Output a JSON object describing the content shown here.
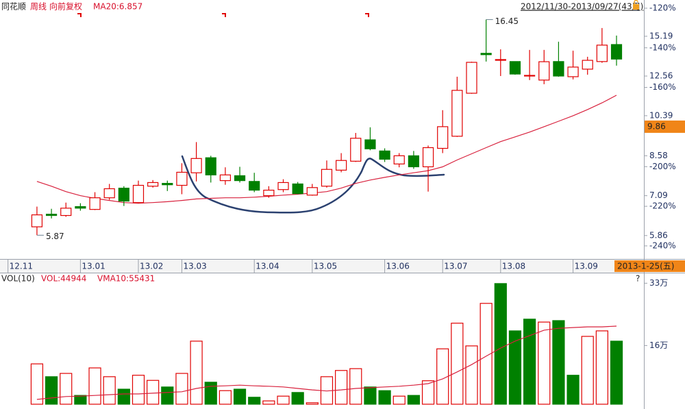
{
  "chart_data": [
    {
      "type": "candlestick",
      "app_name": "同花顺",
      "period": "周线",
      "adjustment": "向前复权",
      "indicator_label": "MA20:6.857",
      "date_range": "2012/11/30-2013/09/27(43周)",
      "cursor_date": "2013-1-25(五)",
      "last_price": 9.86,
      "max_label": 16.45,
      "min_label": 5.87,
      "up_color": "#e00000",
      "down_color": "#008000",
      "log_scale": true,
      "grid": false,
      "categories": [
        null,
        null,
        null,
        null,
        null,
        null,
        null,
        null,
        null,
        null,
        null,
        null,
        null,
        null,
        null,
        null,
        null,
        null,
        null,
        null,
        null,
        null,
        null,
        null,
        null,
        null,
        null,
        null,
        null,
        null,
        null,
        null,
        null,
        null,
        null,
        null,
        null,
        null,
        null,
        null,
        null
      ],
      "xlim": [
        -2.55,
        41.89
      ],
      "xticks": [
        {
          "value": -2,
          "label": "12.11"
        },
        {
          "value": 3,
          "label": "13.01"
        },
        {
          "value": 7,
          "label": "13.02"
        },
        {
          "value": 10,
          "label": "13.03"
        },
        {
          "value": 15,
          "label": "13.04"
        },
        {
          "value": 19,
          "label": "13.05"
        },
        {
          "value": 24,
          "label": "13.06"
        },
        {
          "value": 28,
          "label": "13.07"
        },
        {
          "value": 32,
          "label": "13.08"
        },
        {
          "value": 37,
          "label": "13.09"
        }
      ],
      "ylim": [
        5.24,
        17.77
      ],
      "yticks": [
        15.19,
        12.56,
        10.39,
        8.58,
        7.09,
        5.86
      ],
      "y2lim": [
        -246.6,
        -117.6
      ],
      "y2ticks": [
        {
          "value": -120,
          "label": "-120%"
        },
        {
          "value": -140,
          "label": "-140%"
        },
        {
          "value": -160,
          "label": "-160%"
        },
        {
          "value": -180,
          "label": "-180%"
        },
        {
          "value": -200,
          "label": "-200%"
        },
        {
          "value": -220,
          "label": "-220%"
        },
        {
          "value": -240,
          "label": "-240%"
        }
      ],
      "open": [
        6.11,
        6.49,
        6.45,
        6.73,
        6.64,
        7.02,
        7.35,
        6.86,
        7.42,
        7.52,
        7.45,
        7.91,
        8.5,
        7.62,
        7.8,
        7.59,
        7.09,
        7.3,
        7.5,
        7.11,
        7.42,
        8.01,
        8.36,
        9.26,
        8.78,
        8.25,
        8.58,
        8.14,
        8.89,
        9.42,
        11.57,
        14.0,
        13.54,
        13.46,
        12.56,
        12.32,
        13.46,
        12.52,
        12.98,
        13.46,
        14.6
      ],
      "high": [
        6.73,
        6.66,
        6.86,
        6.84,
        7.21,
        7.5,
        7.42,
        7.62,
        7.64,
        7.62,
        8.28,
        9.16,
        8.58,
        8.12,
        8.14,
        7.91,
        7.42,
        7.67,
        7.57,
        7.5,
        8.39,
        8.69,
        9.57,
        9.83,
        8.89,
        8.69,
        8.78,
        9.01,
        10.67,
        12.52,
        13.45,
        16.45,
        14.27,
        13.46,
        14.23,
        14.23,
        14.8,
        14.18,
        13.77,
        15.8,
        15.24
      ],
      "low": [
        5.87,
        6.36,
        6.41,
        6.6,
        6.62,
        6.95,
        6.75,
        6.84,
        7.37,
        7.25,
        7.14,
        7.59,
        7.55,
        7.47,
        7.55,
        7.21,
        7.02,
        7.21,
        7.14,
        7.09,
        7.37,
        7.93,
        8.33,
        8.81,
        8.33,
        8.12,
        8.06,
        7.23,
        8.69,
        9.39,
        11.54,
        13.46,
        12.56,
        12.64,
        12.32,
        12.08,
        12.52,
        12.36,
        12.64,
        13.38,
        13.2
      ],
      "close": [
        6.47,
        6.45,
        6.68,
        6.68,
        7.02,
        7.33,
        6.91,
        7.45,
        7.55,
        7.47,
        7.93,
        8.47,
        7.83,
        7.83,
        7.62,
        7.28,
        7.28,
        7.55,
        7.16,
        7.37,
        8.04,
        8.39,
        9.33,
        8.87,
        8.44,
        8.58,
        8.14,
        8.92,
        9.86,
        11.73,
        13.41,
        13.91,
        13.59,
        12.68,
        12.6,
        13.45,
        12.56,
        13.11,
        13.54,
        14.56,
        13.62
      ],
      "ma20": {
        "color": "#d8203c",
        "values": [
          7.59,
          7.42,
          7.23,
          7.09,
          7.0,
          6.93,
          6.86,
          6.84,
          6.86,
          6.89,
          6.93,
          6.98,
          7.0,
          7.02,
          7.02,
          7.04,
          7.07,
          7.11,
          7.14,
          7.18,
          7.23,
          7.35,
          7.52,
          7.64,
          7.74,
          7.83,
          7.91,
          7.99,
          8.14,
          8.41,
          8.66,
          8.92,
          9.18,
          9.39,
          9.61,
          9.86,
          10.12,
          10.39,
          10.7,
          11.05,
          11.46
        ]
      }
    },
    {
      "type": "bar",
      "indicator": "VOL(10)",
      "vol_label": "VOL:44944",
      "vma_label": "VMA10:55431",
      "help_icon": "?",
      "up_color": "#e00000",
      "categories": [
        null,
        null,
        null,
        null,
        null,
        null,
        null,
        null,
        null,
        null,
        null,
        null,
        null,
        null,
        null,
        null,
        null,
        null,
        null,
        null,
        null,
        null,
        null,
        null,
        null,
        null,
        null,
        null,
        null,
        null,
        null,
        null,
        null,
        null,
        null,
        null,
        null,
        null,
        null,
        null,
        null
      ],
      "xlim": [
        -2.55,
        41.89
      ],
      "ylim": [
        0,
        35.5
      ],
      "yticks": [
        {
          "value": 33,
          "label": "33万"
        },
        {
          "value": 16,
          "label": "16万"
        }
      ],
      "values": [
        11.0,
        7.5,
        8.4,
        2.4,
        9.9,
        7.5,
        4.1,
        7.9,
        6.5,
        4.7,
        8.4,
        17.2,
        6.0,
        3.7,
        4.1,
        1.9,
        0.9,
        2.2,
        3.2,
        0.4,
        7.5,
        9.2,
        9.7,
        4.7,
        3.7,
        2.2,
        2.4,
        6.4,
        15.1,
        22.1,
        15.9,
        27.5,
        32.9,
        20.0,
        23.2,
        22.4,
        22.8,
        7.9,
        18.5,
        20.0,
        17.2
      ],
      "colors": [
        "#e00000",
        "#008000",
        "#e00000",
        "#008000",
        "#e00000",
        "#e00000",
        "#008000",
        "#e00000",
        "#e00000",
        "#008000",
        "#e00000",
        "#e00000",
        "#008000",
        "#e00000",
        "#008000",
        "#008000",
        "#e00000",
        "#e00000",
        "#008000",
        "#e00000",
        "#e00000",
        "#e00000",
        "#e00000",
        "#008000",
        "#008000",
        "#e00000",
        "#008000",
        "#e00000",
        "#e00000",
        "#e00000",
        "#e00000",
        "#e00000",
        "#008000",
        "#008000",
        "#008000",
        "#e00000",
        "#008000",
        "#008000",
        "#e00000",
        "#e00000",
        "#008000"
      ],
      "vma10": {
        "color": "#d8203c",
        "values": [
          1.3,
          1.7,
          2.1,
          2.2,
          2.4,
          2.6,
          2.8,
          2.8,
          3.0,
          3.2,
          3.4,
          4.3,
          4.9,
          5.0,
          5.2,
          5.0,
          4.9,
          4.7,
          4.3,
          3.9,
          3.6,
          3.9,
          4.3,
          4.5,
          4.7,
          4.9,
          5.2,
          5.6,
          6.9,
          8.8,
          10.8,
          13.1,
          15.3,
          17.2,
          18.7,
          20.2,
          20.7,
          20.9,
          21.1,
          21.1,
          21.3
        ]
      }
    }
  ]
}
